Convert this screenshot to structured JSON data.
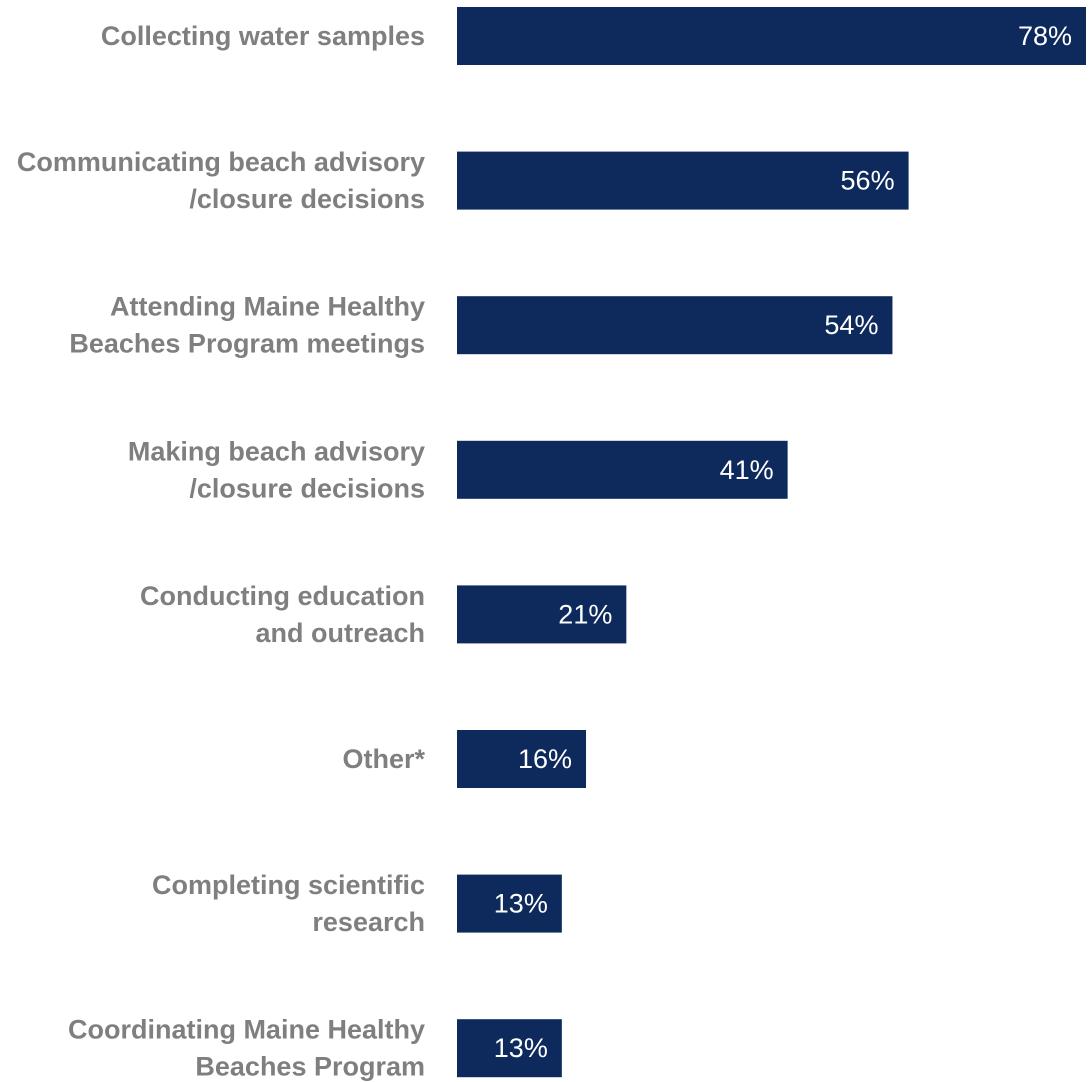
{
  "chart_data": {
    "type": "bar",
    "orientation": "horizontal",
    "categories": [
      [
        "Collecting water samples"
      ],
      [
        "Communicating beach advisory",
        "/closure decisions"
      ],
      [
        "Attending Maine Healthy",
        "Beaches Program meetings"
      ],
      [
        "Making beach advisory",
        "/closure decisions"
      ],
      [
        "Conducting education",
        "and outreach"
      ],
      [
        "Other*"
      ],
      [
        "Completing scientific",
        "research"
      ],
      [
        "Coordinating Maine Healthy",
        "Beaches Program"
      ]
    ],
    "values": [
      78,
      56,
      54,
      41,
      21,
      16,
      13,
      13
    ],
    "value_labels": [
      "78%",
      "56%",
      "54%",
      "41%",
      "21%",
      "16%",
      "13%",
      "13%"
    ],
    "xlim": [
      0,
      78
    ],
    "bar_color": "#0e2a5c",
    "label_color": "#7f7f7f",
    "grid": false,
    "legend": "none"
  }
}
